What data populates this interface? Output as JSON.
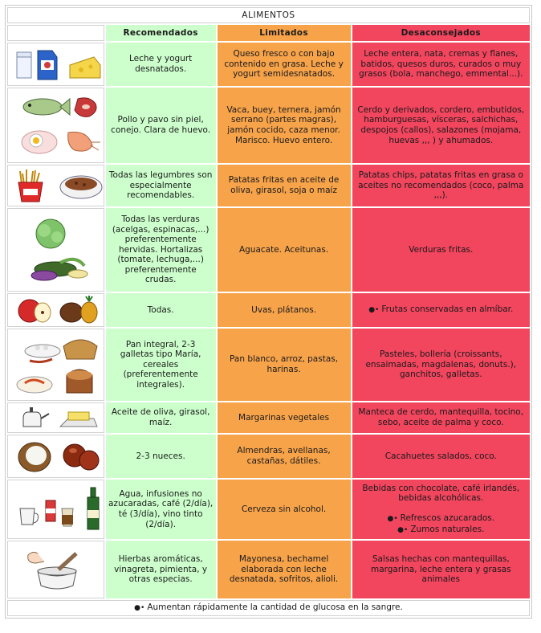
{
  "title": "ALIMENTOS",
  "headers": {
    "recommended": "Recomendados",
    "limited": "Limitados",
    "discouraged": "Desaconsejados"
  },
  "rows": [
    {
      "icon": "dairy-icon",
      "recommended": "Leche y yogurt desnatados.",
      "limited": "Queso fresco o con bajo contenido en grasa. Leche y yogurt semidesnatados.",
      "discouraged": "Leche entera, nata, cremas y flanes, batidos, quesos duros, curados o muy grasos (bola, manchego, emmental...)."
    },
    {
      "icon": "meat-fish-egg-icon",
      "recommended": "Pollo y pavo sin piel, conejo. Clara de huevo.",
      "limited": "Vaca, buey, ternera, jamón serrano (partes magras), jamón cocido, caza menor. Marisco. Huevo entero.",
      "discouraged": "Cerdo y derivados, cordero, embutidos, hamburguesas, vísceras, salchichas, despojos (callos), salazones (mojama, huevas ,,, ) y ahumados."
    },
    {
      "icon": "fries-legumes-icon",
      "recommended": "Todas las legumbres son especialmente recomendables.",
      "limited": "Patatas fritas en aceite de oliva, girasol, soja o maíz",
      "discouraged": "Patatas chips, patatas fritas en grasa o aceites no recomendados (coco, palma ,,,)."
    },
    {
      "icon": "vegetables-icon",
      "recommended": "Todas las verduras (acelgas, espinacas,...) preferentemente hervidas. Hortalizas (tomate, lechuga,...) preferentemente crudas.",
      "limited": "Aguacate. Aceitunas.",
      "discouraged": "Verduras fritas."
    },
    {
      "icon": "fruit-icon",
      "recommended": "Todas.",
      "limited": "Uvas, plátanos.",
      "discouraged_note": "Frutas conservadas en almíbar."
    },
    {
      "icon": "bread-cereal-icon",
      "recommended": "Pan integral, 2-3 galletas tipo María, cereales (preferentemente integrales).",
      "limited": "Pan blanco, arroz, pastas, harinas.",
      "discouraged": "Pasteles, bollería (croissants, ensaimadas, magdalenas, donuts.), ganchitos, galletas."
    },
    {
      "icon": "oil-butter-icon",
      "recommended": "Aceite de oliva, girasol, maíz.",
      "limited": "Margarinas vegetales",
      "discouraged": "Manteca de cerdo, mantequilla, tocino, sebo, aceite de palma y coco."
    },
    {
      "icon": "nuts-icon",
      "recommended": "2-3 nueces.",
      "limited": "Almendras, avellanas, castañas, dátiles.",
      "discouraged": "Cacahuetes salados, coco."
    },
    {
      "icon": "drinks-icon",
      "recommended": "Agua, infusiones no azucaradas, café (2/día), té (3/día), vino tinto (2/día).",
      "limited": "Cerveza sin alcohol.",
      "discouraged": "Bebidas con chocolate, café irlandés, bebidas alcohólicas.",
      "discouraged_note1": "Refrescos azucarados.",
      "discouraged_note2": "Zumos naturales."
    },
    {
      "icon": "herbs-mortar-icon",
      "recommended": "Hierbas aromáticas, vinagreta, pimienta, y otras especias.",
      "limited": "Mayonesa, bechamel elaborada con leche desnatada, sofritos, alioli.",
      "discouraged": "Salsas hechas con mantequillas, margarina, leche entera y grasas animales"
    }
  ],
  "footer": "Aumentan rápidamente la cantidad de glucosa en la sangre.",
  "colors": {
    "recommended": "#ccffcc",
    "limited": "#f7a34a",
    "discouraged": "#f2455e"
  }
}
